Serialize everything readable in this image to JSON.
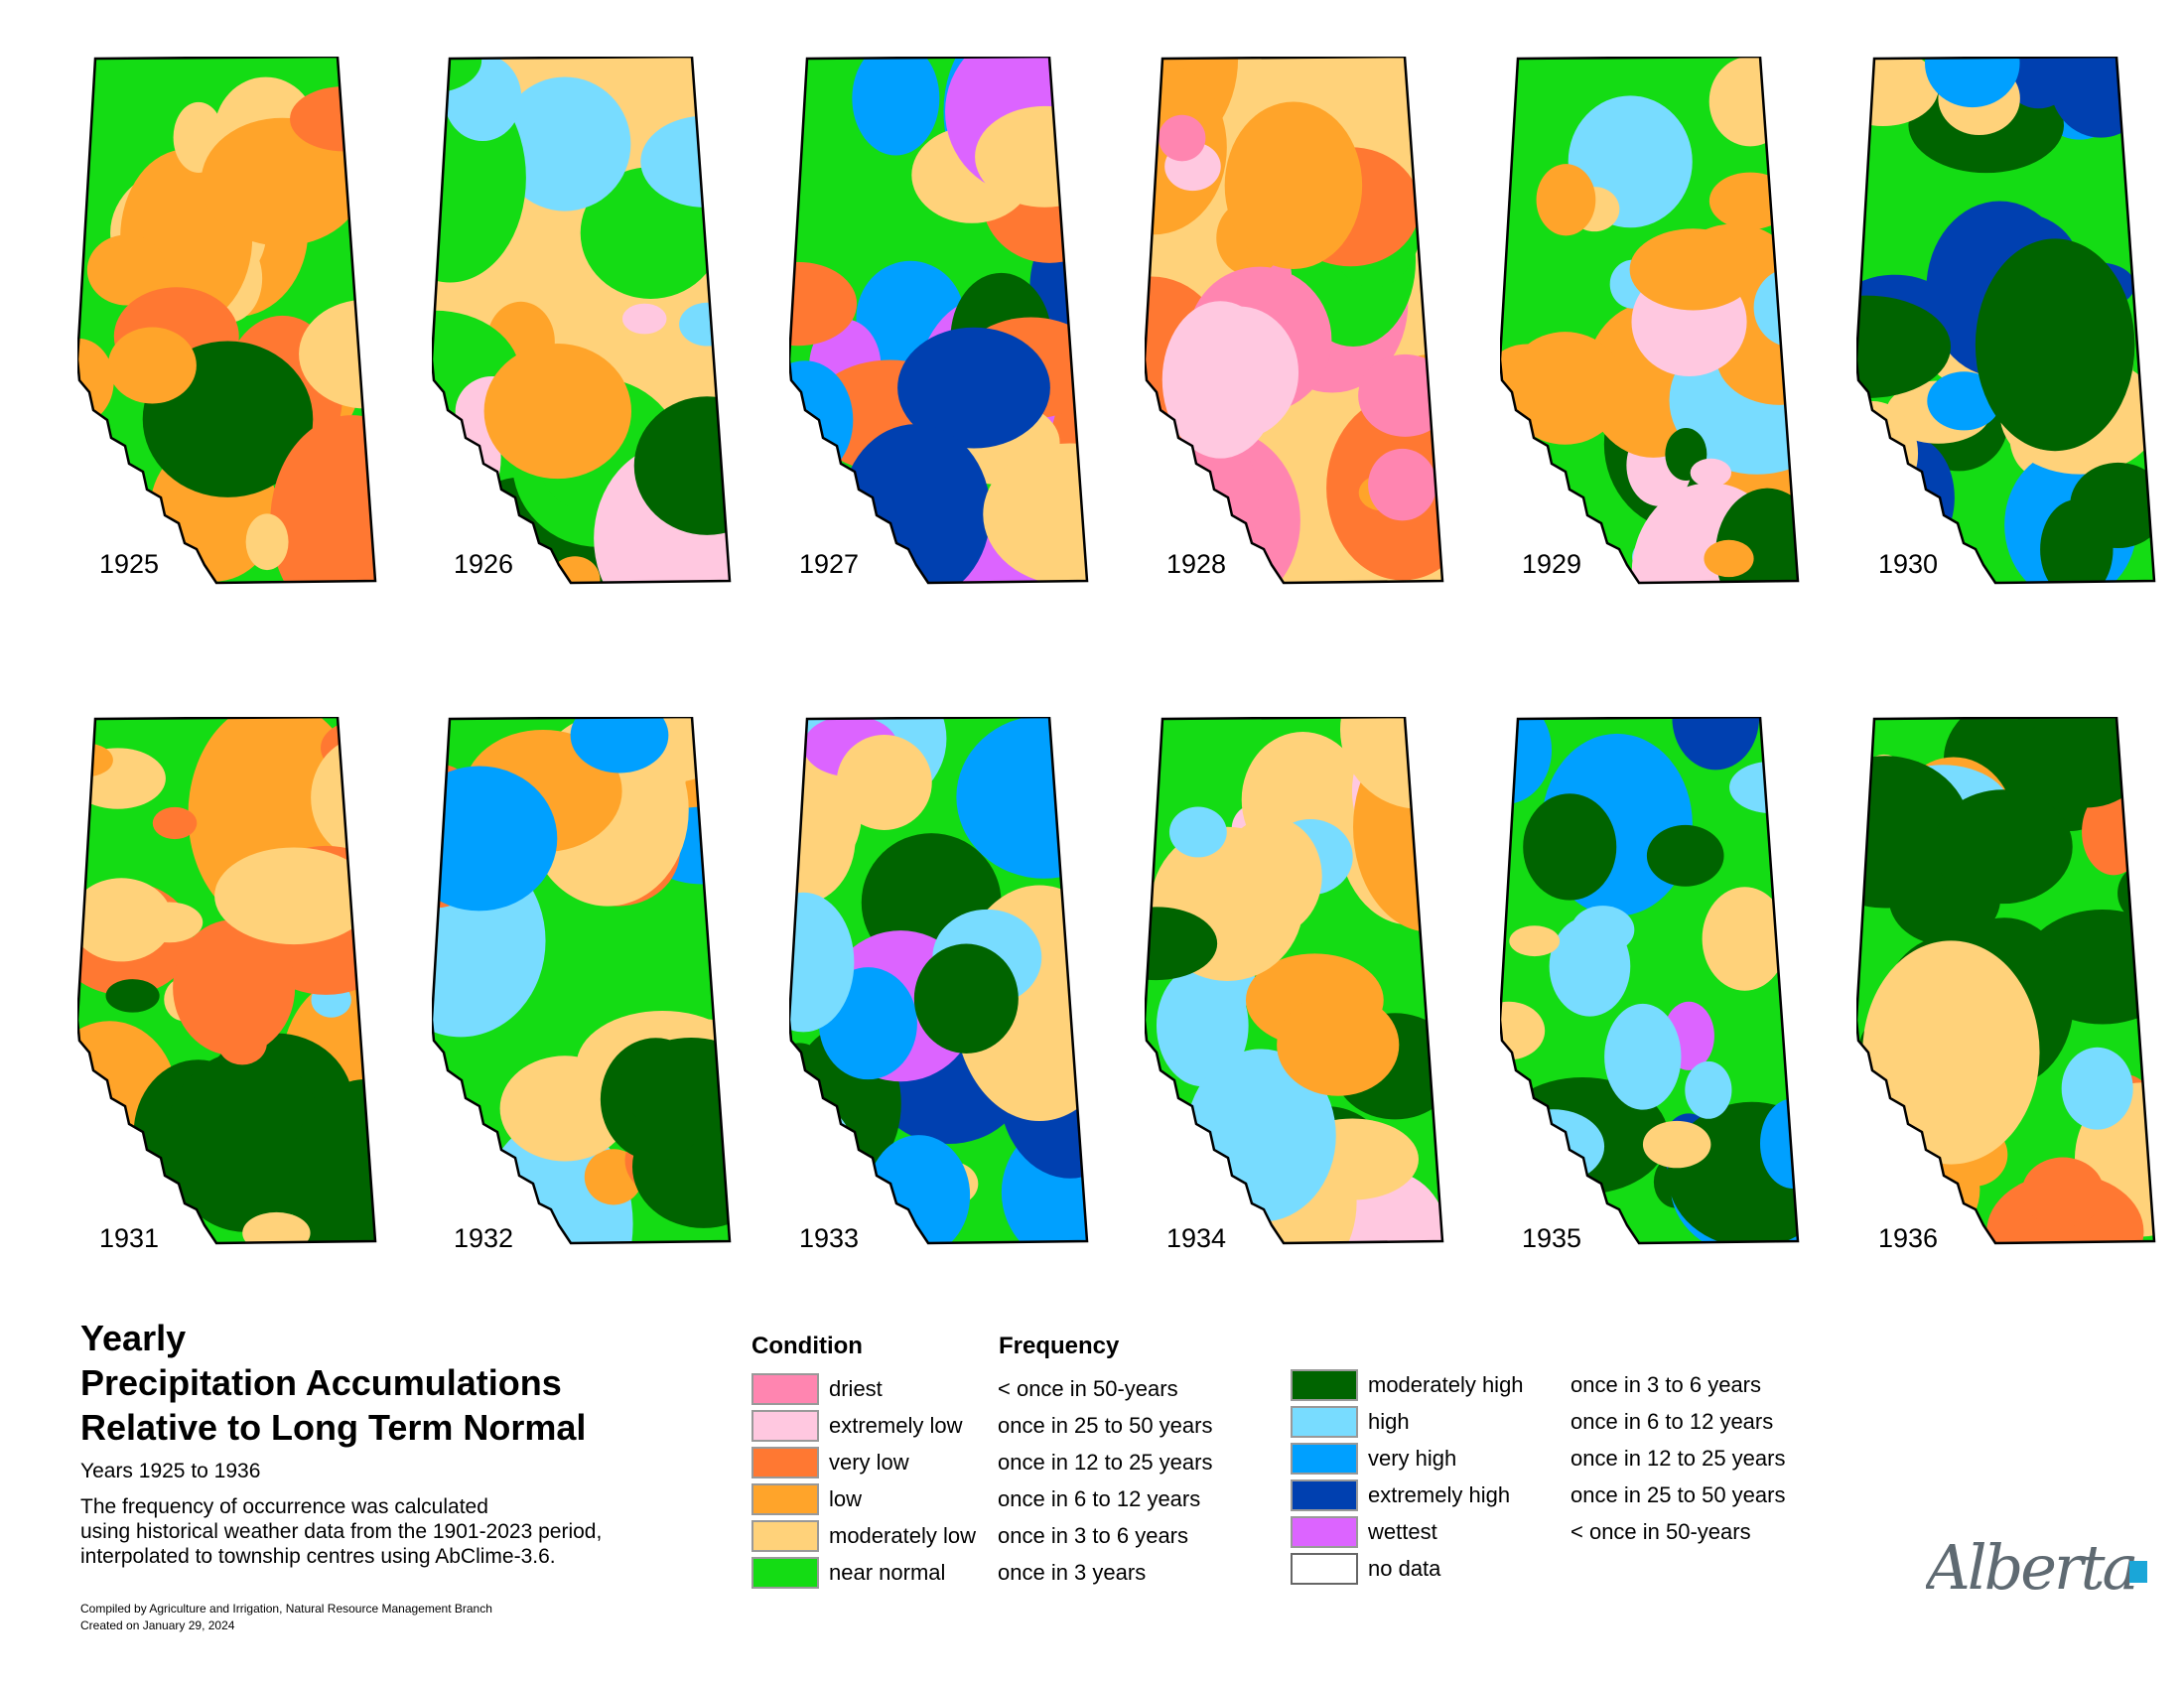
{
  "title_lines": [
    "Yearly",
    "Precipitation Accumulations",
    "Relative to Long Term Normal"
  ],
  "subtitle": "Years 1925 to 1936",
  "description": [
    "The frequency of occurrence was calculated",
    "using historical weather data from the 1901-2023 period,",
    "interpolated to township centres using AbClime-3.6."
  ],
  "credits": [
    "Compiled by Agriculture and Irrigation, Natural Resource Management Branch",
    "Created on January 29, 2024"
  ],
  "years": [
    "1925",
    "1926",
    "1927",
    "1928",
    "1929",
    "1930",
    "1931",
    "1932",
    "1933",
    "1934",
    "1935",
    "1936"
  ],
  "legend": {
    "condition_header": "Condition",
    "frequency_header": "Frequency",
    "dry": [
      {
        "condition": "driest",
        "frequency": "< once in 50-years",
        "color": "#ff85b0"
      },
      {
        "condition": "extremely low",
        "frequency": "once in 25 to 50 years",
        "color": "#ffc8e0"
      },
      {
        "condition": "very low",
        "frequency": "once in 12 to 25 years",
        "color": "#ff7832"
      },
      {
        "condition": "low",
        "frequency": "once in 6 to 12 years",
        "color": "#ffa42a"
      },
      {
        "condition": "moderately low",
        "frequency": "once in 3 to 6 years",
        "color": "#ffd27a"
      },
      {
        "condition": "near normal",
        "frequency": "once in 3 years",
        "color": "#14dc14"
      }
    ],
    "wet": [
      {
        "condition": "moderately high",
        "frequency": "once in 3 to 6 years",
        "color": "#006400"
      },
      {
        "condition": "high",
        "frequency": "once in 6 to 12 years",
        "color": "#78dcff"
      },
      {
        "condition": "very high",
        "frequency": "once in 12 to 25 years",
        "color": "#00a0ff"
      },
      {
        "condition": "extremely high",
        "frequency": "once in 25 to 50 years",
        "color": "#0040b0"
      },
      {
        "condition": "wettest",
        "frequency": "< once in 50-years",
        "color": "#dc64ff"
      },
      {
        "condition": "no data",
        "frequency": "",
        "color": "#ffffff"
      }
    ]
  },
  "logo": {
    "text": "Alberta",
    "accent": "#1aa6d8"
  }
}
